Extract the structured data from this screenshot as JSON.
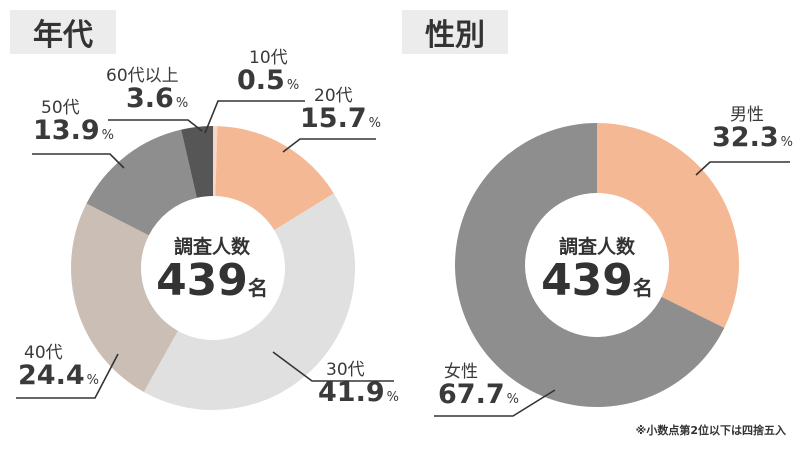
{
  "age_panel": {
    "title": "年代",
    "center_caption": "調査人数",
    "center_number": "439",
    "center_unit": "名"
  },
  "gender_panel": {
    "title": "性別",
    "center_caption": "調査人数",
    "center_number": "439",
    "center_unit": "名"
  },
  "labels": {
    "age": [
      {
        "cat": "10代",
        "val": "0.5",
        "pct": "%"
      },
      {
        "cat": "20代",
        "val": "15.7",
        "pct": "%"
      },
      {
        "cat": "30代",
        "val": "41.9",
        "pct": "%"
      },
      {
        "cat": "40代",
        "val": "24.4",
        "pct": "%"
      },
      {
        "cat": "50代",
        "val": "13.9",
        "pct": "%"
      },
      {
        "cat": "60代以上",
        "val": "3.6",
        "pct": "%"
      }
    ],
    "gender": [
      {
        "cat": "男性",
        "val": "32.3",
        "pct": "%"
      },
      {
        "cat": "女性",
        "val": "67.7",
        "pct": "%"
      }
    ]
  },
  "footnote": "※小数点第2位以下は四捨五入",
  "chart_data": [
    {
      "type": "pie",
      "title": "年代",
      "donut": true,
      "center_text": "調査人数 439名",
      "categories": [
        "10代",
        "20代",
        "30代",
        "40代",
        "50代",
        "60代以上"
      ],
      "values": [
        0.5,
        15.7,
        41.9,
        24.4,
        13.9,
        3.6
      ],
      "unit": "%",
      "colors": [
        "#f7d6c6",
        "#f4b994",
        "#e0e0e0",
        "#cbbfb5",
        "#8e8e8e",
        "#565656"
      ]
    },
    {
      "type": "pie",
      "title": "性別",
      "donut": true,
      "center_text": "調査人数 439名",
      "categories": [
        "男性",
        "女性"
      ],
      "values": [
        32.3,
        67.7
      ],
      "unit": "%",
      "colors": [
        "#f4b994",
        "#8e8e8e"
      ]
    }
  ]
}
